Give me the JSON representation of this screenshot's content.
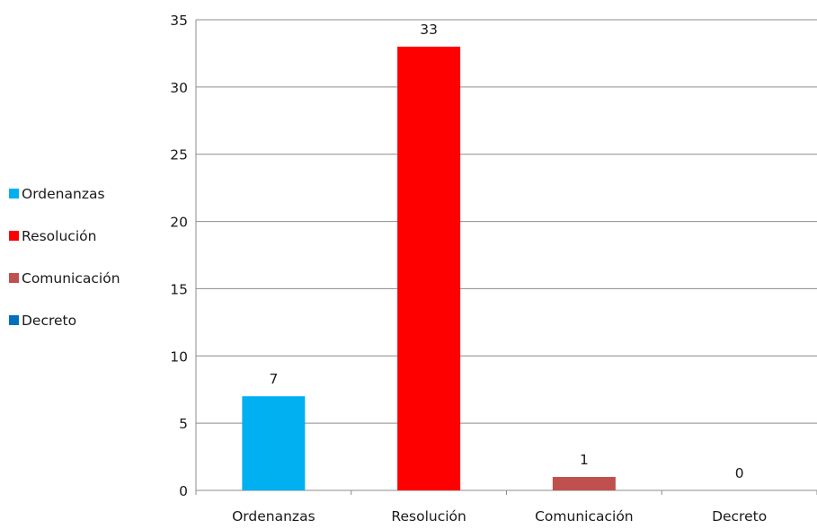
{
  "chart_data": {
    "type": "bar",
    "categories": [
      "Ordenanzas",
      "Resolución",
      "Comunicación",
      "Decreto"
    ],
    "values": [
      7,
      33,
      1,
      0
    ],
    "colors": [
      "#00b0f0",
      "#ff0000",
      "#c0504d",
      "#0070c0"
    ],
    "data_labels": [
      "7",
      "33",
      "1",
      "0"
    ],
    "ylim": [
      0,
      35
    ],
    "y_ticks": [
      0,
      5,
      10,
      15,
      20,
      25,
      30,
      35
    ],
    "y_tick_labels": [
      "0",
      "5",
      "10",
      "15",
      "20",
      "25",
      "30",
      "35"
    ],
    "grid": true,
    "legend_position": "left",
    "legend": [
      {
        "label": "Ordenanzas",
        "color": "#00b0f0"
      },
      {
        "label": "Resolución",
        "color": "#ff0000"
      },
      {
        "label": "Comunicación",
        "color": "#c0504d"
      },
      {
        "label": "Decreto",
        "color": "#0070c0"
      }
    ]
  }
}
